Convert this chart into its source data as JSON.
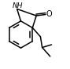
{
  "bg_color": "#ffffff",
  "line_color": "#000000",
  "line_width": 1.1,
  "NH_label": "NH",
  "O_label": "O",
  "NH_fontsize": 6.5,
  "O_fontsize": 7.0
}
